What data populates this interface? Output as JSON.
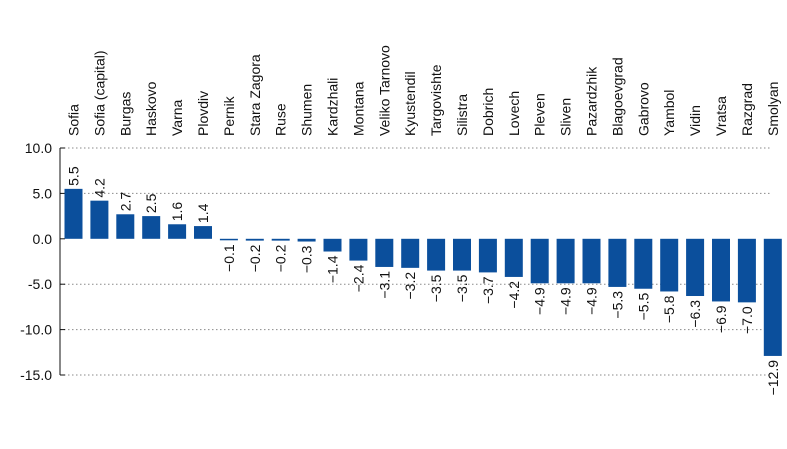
{
  "chart_data": {
    "type": "bar",
    "title": "",
    "xlabel": "",
    "ylabel": "",
    "ylim": [
      -15,
      10
    ],
    "yticks": [
      10,
      5,
      0,
      -5,
      -10,
      -15
    ],
    "ytick_labels": [
      "10.0",
      "5.0",
      "0.0",
      "-5.0",
      "-10.0",
      "-15.0"
    ],
    "grid": "dotted horizontal at major ticks",
    "legend": "none",
    "bar_color": "#0b4f9c",
    "categories": [
      "Sofia",
      "Sofia (capital)",
      "Burgas",
      "Haskovo",
      "Varna",
      "Plovdiv",
      "Pernik",
      "Stara Zagora",
      "Ruse",
      "Shumen",
      "Kardzhali",
      "Montana",
      "Veliko Tarnovo",
      "Kyustendil",
      "Targovishte",
      "Silistra",
      "Dobrich",
      "Lovech",
      "Pleven",
      "Sliven",
      "Pazardzhik",
      "Blagoevgrad",
      "Gabrovo",
      "Yambol",
      "Vidin",
      "Vratsa",
      "Razgrad",
      "Smolyan"
    ],
    "values": [
      5.5,
      4.2,
      2.7,
      2.5,
      1.6,
      1.4,
      -0.1,
      -0.2,
      -0.2,
      -0.3,
      -1.4,
      -2.4,
      -3.1,
      -3.2,
      -3.5,
      -3.5,
      -3.7,
      -4.2,
      -4.9,
      -4.9,
      -4.9,
      -5.3,
      -5.5,
      -5.8,
      -6.3,
      -6.9,
      -7.0,
      -12.9
    ],
    "value_labels": [
      "5.5",
      "4.2",
      "2.7",
      "2.5",
      "1.6",
      "1.4",
      "−0.1",
      "−0.2",
      "−0.2",
      "−0.3",
      "−1.4",
      "−2.4",
      "−3.1",
      "−3.2",
      "−3.5",
      "−3.5",
      "−3.7",
      "−4.2",
      "−4.9",
      "−4.9",
      "−4.9",
      "−5.3",
      "−5.5",
      "−5.8",
      "−6.3",
      "−6.9",
      "−7.0",
      "−12.9"
    ]
  }
}
